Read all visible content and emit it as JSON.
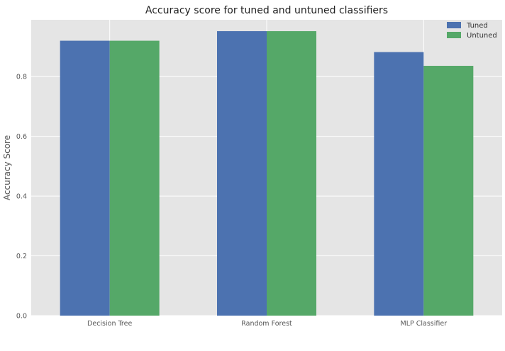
{
  "chart_data": {
    "type": "bar",
    "title": "Accuracy score for tuned and untuned classifiers",
    "xlabel": "",
    "ylabel": "Accuracy Score",
    "categories": [
      "Decision Tree",
      "Random Forest",
      "MLP Classifier"
    ],
    "series": [
      {
        "name": "Tuned",
        "values": [
          0.92,
          0.952,
          0.882
        ],
        "color": "#4c72b0"
      },
      {
        "name": "Untuned",
        "values": [
          0.92,
          0.952,
          0.836
        ],
        "color": "#55a868"
      }
    ],
    "ylim": [
      0,
      0.99
    ],
    "yticks": [
      0.0,
      0.2,
      0.4,
      0.6,
      0.8
    ],
    "ytick_labels": [
      "0.0",
      "0.2",
      "0.4",
      "0.6",
      "0.8"
    ],
    "grid": true,
    "legend_position": "top-right",
    "background_color": "#e5e5e5",
    "grid_color": "#ffffff"
  }
}
